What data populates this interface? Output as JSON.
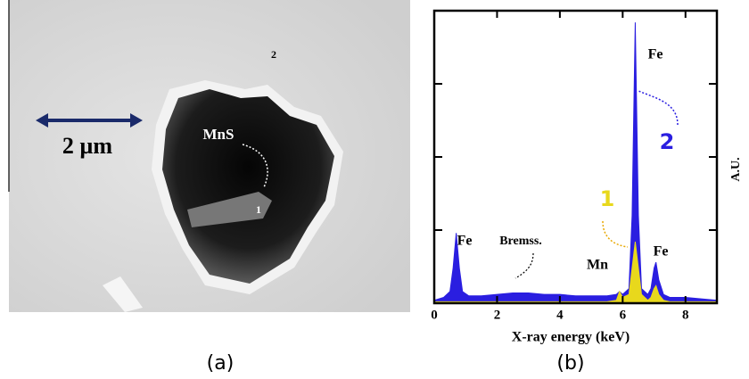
{
  "panel_a": {
    "scale_label": "2 µm",
    "inclusion_label": "MnS",
    "point_1": "1",
    "point_2": "2",
    "caption": "(a)"
  },
  "chart_data": {
    "type": "area",
    "caption": "(b)",
    "x_label": "X-ray energy (keV)",
    "y_label": "A.U.",
    "xlim": [
      0,
      9
    ],
    "ylim": [
      0,
      100
    ],
    "xticks": [
      0,
      2,
      4,
      6,
      8
    ],
    "yticks": [
      0,
      25,
      50,
      75,
      100
    ],
    "x": [
      0,
      0.3,
      0.5,
      0.6,
      0.7,
      0.8,
      0.9,
      1.1,
      1.5,
      2,
      2.5,
      3,
      3.5,
      4,
      4.5,
      5,
      5.5,
      5.8,
      5.9,
      6.0,
      6.2,
      6.3,
      6.4,
      6.5,
      6.6,
      6.8,
      6.9,
      7.0,
      7.06,
      7.15,
      7.3,
      7.5,
      8,
      8.5,
      9
    ],
    "series": [
      {
        "name": "2",
        "color": "#2a1ee0",
        "values": [
          1,
          2,
          4,
          12,
          24,
          12,
          4,
          2.5,
          2.5,
          3,
          3.5,
          3.5,
          3,
          3,
          2.5,
          2.5,
          2.5,
          3,
          4,
          3,
          5,
          30,
          96,
          30,
          5,
          3,
          5,
          12,
          14,
          8,
          3,
          2,
          2,
          1.5,
          1
        ]
      },
      {
        "name": "1",
        "color": "#e8d81c",
        "values": [
          0.5,
          0.5,
          0.5,
          0.5,
          0.5,
          0.5,
          0.5,
          0.5,
          0.5,
          0.5,
          0.5,
          0.5,
          0.5,
          0.5,
          0.5,
          0.5,
          0.5,
          1,
          4,
          2,
          3,
          12,
          21,
          12,
          3,
          1,
          2,
          5,
          6,
          3,
          1,
          0.5,
          0.5,
          0.5,
          0.5
        ]
      }
    ],
    "annotations": [
      "Fe",
      "Fe",
      "Bremss.",
      "Mn",
      "Fe"
    ]
  }
}
